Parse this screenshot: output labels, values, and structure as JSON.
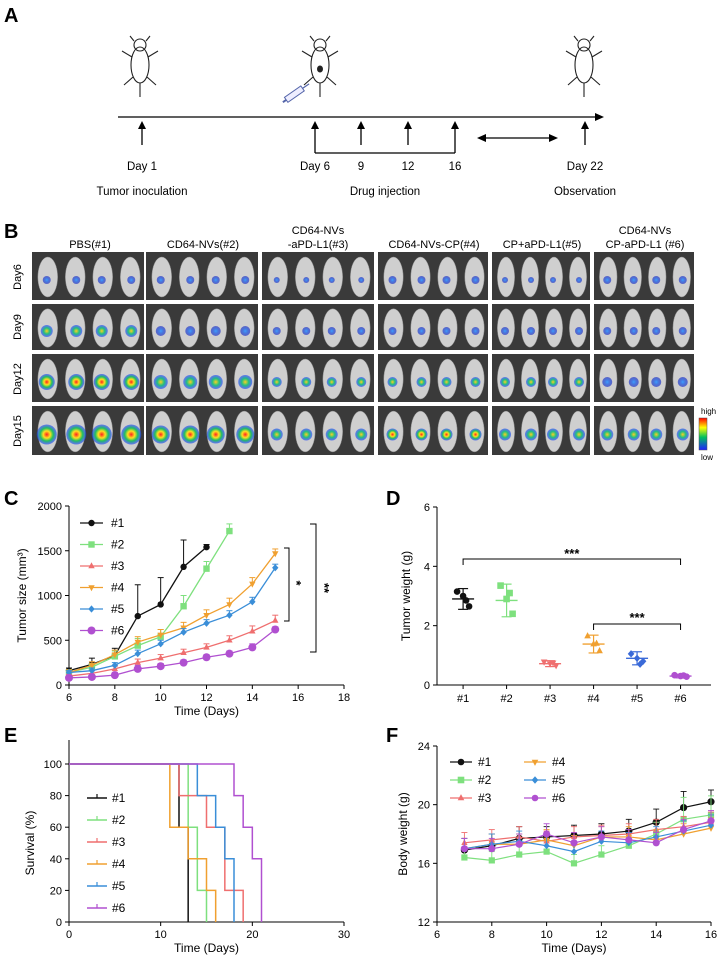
{
  "panel_a": {
    "label": "A",
    "days": [
      "Day 1",
      "Day 6",
      "9",
      "12",
      "16",
      "Day 22"
    ],
    "phases": [
      "Tumor inoculation",
      "Drug injection",
      "Observation"
    ]
  },
  "panel_b": {
    "label": "B",
    "groups": [
      {
        "lines": [
          "PBS(#1)"
        ]
      },
      {
        "lines": [
          "CD64-NVs(#2)"
        ]
      },
      {
        "lines": [
          "CD64-NVs",
          "-aPD-L1(#3)"
        ]
      },
      {
        "lines": [
          "CD64-NVs-CP(#4)"
        ]
      },
      {
        "lines": [
          "CP+aPD-L1(#5)"
        ]
      },
      {
        "lines": [
          "CD64-NVs",
          "CP-aPD-L1 (#6)"
        ]
      }
    ],
    "rows": [
      "Day6",
      "Day9",
      "Day12",
      "Day15"
    ],
    "scale_high": "high",
    "scale_low": "low"
  },
  "chart_data": [
    {
      "panel": "C",
      "type": "line",
      "xlabel": "Time (Days)",
      "ylabel": "Tumor size (mm³)",
      "xlim": [
        6,
        18
      ],
      "ylim": [
        0,
        2000
      ],
      "xticks": [
        6,
        8,
        10,
        12,
        14,
        16,
        18
      ],
      "yticks": [
        0,
        500,
        1000,
        1500,
        2000
      ],
      "series": [
        {
          "name": "#1",
          "color": "#111111",
          "marker": "circle",
          "x": [
            6,
            7,
            8,
            9,
            10,
            11,
            12
          ],
          "y": [
            160,
            230,
            330,
            770,
            900,
            1320,
            1540
          ],
          "err": [
            30,
            70,
            80,
            350,
            300,
            300,
            30
          ]
        },
        {
          "name": "#2",
          "color": "#7ee07e",
          "marker": "square",
          "x": [
            6,
            7,
            8,
            9,
            10,
            11,
            12,
            13
          ],
          "y": [
            140,
            200,
            320,
            440,
            540,
            880,
            1300,
            1720
          ],
          "err": [
            30,
            40,
            60,
            80,
            80,
            120,
            80,
            80
          ]
        },
        {
          "name": "#3",
          "color": "#ef6f6f",
          "marker": "triangle",
          "x": [
            6,
            7,
            8,
            9,
            10,
            11,
            12,
            13,
            14,
            15
          ],
          "y": [
            100,
            130,
            180,
            250,
            300,
            360,
            420,
            500,
            600,
            720
          ],
          "err": [
            20,
            30,
            30,
            40,
            40,
            40,
            40,
            50,
            60,
            60
          ]
        },
        {
          "name": "#4",
          "color": "#f0a030",
          "marker": "triangle-down",
          "x": [
            6,
            7,
            8,
            9,
            10,
            11,
            12,
            13,
            14,
            15
          ],
          "y": [
            140,
            220,
            340,
            480,
            560,
            640,
            780,
            900,
            1130,
            1470
          ],
          "err": [
            30,
            40,
            50,
            60,
            60,
            60,
            60,
            70,
            70,
            50
          ]
        },
        {
          "name": "#5",
          "color": "#3a8ed8",
          "marker": "diamond",
          "x": [
            6,
            7,
            8,
            9,
            10,
            11,
            12,
            13,
            14,
            15
          ],
          "y": [
            140,
            160,
            220,
            350,
            460,
            590,
            690,
            780,
            930,
            1310
          ],
          "err": [
            20,
            30,
            30,
            40,
            40,
            40,
            40,
            50,
            50,
            40
          ]
        },
        {
          "name": "#6",
          "color": "#b050d0",
          "marker": "circle",
          "x": [
            6,
            7,
            8,
            9,
            10,
            11,
            12,
            13,
            14,
            15
          ],
          "y": [
            80,
            90,
            110,
            180,
            210,
            250,
            310,
            350,
            420,
            620
          ],
          "err": [
            20,
            20,
            30,
            40,
            30,
            30,
            30,
            30,
            40,
            30
          ]
        }
      ],
      "annotations": [
        "*",
        "**"
      ]
    },
    {
      "panel": "D",
      "type": "scatter",
      "ylabel": "Tumor weight (g)",
      "ylim": [
        0,
        6
      ],
      "yticks": [
        0,
        2,
        4,
        6
      ],
      "categories": [
        "#1",
        "#2",
        "#3",
        "#4",
        "#5",
        "#6"
      ],
      "groups": [
        {
          "name": "#1",
          "color": "#111111",
          "mean": 2.9,
          "sd": 0.35,
          "points": [
            3.15,
            2.65,
            3.0,
            2.85
          ]
        },
        {
          "name": "#2",
          "color": "#7ee07e",
          "mean": 2.85,
          "sd": 0.55,
          "points": [
            3.35,
            2.4,
            2.9,
            3.1
          ]
        },
        {
          "name": "#3",
          "color": "#ef6f6f",
          "mean": 0.72,
          "sd": 0.1,
          "points": [
            0.78,
            0.66,
            0.72,
            0.75
          ]
        },
        {
          "name": "#4",
          "color": "#f0a030",
          "mean": 1.38,
          "sd": 0.3,
          "points": [
            1.65,
            1.15,
            1.38,
            1.4
          ]
        },
        {
          "name": "#5",
          "color": "#3a6ad8",
          "mean": 0.9,
          "sd": 0.22,
          "points": [
            1.05,
            0.8,
            0.9,
            0.7
          ]
        },
        {
          "name": "#6",
          "color": "#b050d0",
          "mean": 0.3,
          "sd": 0.06,
          "points": [
            0.33,
            0.28,
            0.3,
            0.32
          ]
        }
      ],
      "annotations": [
        "***",
        "***"
      ]
    },
    {
      "panel": "E",
      "type": "line",
      "xlabel": "Time (Days)",
      "ylabel": "Survival (%)",
      "xlim": [
        0,
        30
      ],
      "ylim": [
        0,
        100
      ],
      "xticks": [
        0,
        10,
        20,
        30
      ],
      "yticks": [
        0,
        20,
        40,
        60,
        80,
        100
      ],
      "series": [
        {
          "name": "#1",
          "color": "#111111",
          "x": [
            0,
            12,
            12,
            13,
            13
          ],
          "y": [
            100,
            100,
            60,
            60,
            0
          ]
        },
        {
          "name": "#2",
          "color": "#7ee07e",
          "x": [
            0,
            13,
            13,
            14,
            14,
            15,
            15
          ],
          "y": [
            100,
            100,
            60,
            60,
            20,
            20,
            0
          ]
        },
        {
          "name": "#3",
          "color": "#ef6f6f",
          "x": [
            0,
            12,
            12,
            15,
            15,
            17,
            17,
            19,
            19
          ],
          "y": [
            100,
            100,
            80,
            80,
            60,
            60,
            20,
            20,
            0
          ]
        },
        {
          "name": "#4",
          "color": "#f0a030",
          "x": [
            0,
            11,
            11,
            13,
            13,
            15,
            15,
            16,
            16
          ],
          "y": [
            100,
            100,
            60,
            60,
            40,
            40,
            20,
            20,
            0
          ]
        },
        {
          "name": "#5",
          "color": "#3a8ed8",
          "x": [
            0,
            14,
            14,
            16,
            16,
            17,
            17,
            18,
            18
          ],
          "y": [
            100,
            100,
            80,
            80,
            60,
            60,
            40,
            40,
            0
          ]
        },
        {
          "name": "#6",
          "color": "#b050d0",
          "x": [
            0,
            18,
            18,
            19,
            19,
            20,
            20,
            21,
            21
          ],
          "y": [
            100,
            100,
            80,
            80,
            60,
            60,
            40,
            40,
            0
          ]
        }
      ]
    },
    {
      "panel": "F",
      "type": "line",
      "xlabel": "Time (Days)",
      "ylabel": "Body weight (g)",
      "xlim": [
        6,
        16
      ],
      "ylim": [
        12,
        24
      ],
      "xticks": [
        6,
        8,
        10,
        12,
        14,
        16
      ],
      "yticks": [
        12,
        16,
        20,
        24
      ],
      "series": [
        {
          "name": "#1",
          "color": "#111111",
          "marker": "circle",
          "x": [
            7,
            8,
            9,
            10,
            11,
            12,
            13,
            14,
            15,
            16
          ],
          "y": [
            16.9,
            17.2,
            17.7,
            17.8,
            17.9,
            18.0,
            18.2,
            18.8,
            19.8,
            20.2
          ],
          "err": [
            0.8,
            0.8,
            0.8,
            0.7,
            0.7,
            0.7,
            0.8,
            0.9,
            1.1,
            0.8
          ]
        },
        {
          "name": "#2",
          "color": "#7ee07e",
          "marker": "square",
          "x": [
            7,
            8,
            9,
            10,
            11,
            12,
            13,
            14,
            15,
            16
          ],
          "y": [
            16.4,
            16.2,
            16.6,
            16.8,
            16.0,
            16.6,
            17.2,
            18.0,
            19.0,
            19.3
          ],
          "err": [
            0.6,
            0.6,
            0.6,
            0.6,
            0.6,
            0.6,
            0.6,
            0.8,
            1.5,
            1.3
          ]
        },
        {
          "name": "#3",
          "color": "#ef6f6f",
          "marker": "triangle",
          "x": [
            7,
            8,
            9,
            10,
            11,
            12,
            13,
            14,
            15,
            16
          ],
          "y": [
            17.4,
            17.6,
            17.8,
            17.5,
            17.8,
            17.9,
            18.0,
            18.3,
            18.5,
            18.8
          ],
          "err": [
            0.7,
            0.7,
            0.7,
            0.7,
            0.7,
            0.7,
            0.7,
            0.7,
            0.7,
            0.7
          ]
        },
        {
          "name": "#4",
          "color": "#f0a030",
          "marker": "triangle-down",
          "x": [
            7,
            8,
            9,
            10,
            11,
            12,
            13,
            14,
            15,
            16
          ],
          "y": [
            17.0,
            17.3,
            17.3,
            17.6,
            17.2,
            17.8,
            17.8,
            17.6,
            18.0,
            18.4
          ],
          "err": [
            0.7,
            0.7,
            0.7,
            0.7,
            0.7,
            0.7,
            0.7,
            0.7,
            0.7,
            0.7
          ]
        },
        {
          "name": "#5",
          "color": "#3a8ed8",
          "marker": "diamond",
          "x": [
            7,
            8,
            9,
            10,
            11,
            12,
            13,
            14,
            15,
            16
          ],
          "y": [
            17.0,
            17.3,
            17.5,
            17.2,
            16.8,
            17.5,
            17.4,
            17.8,
            18.2,
            18.6
          ],
          "err": [
            0.7,
            0.7,
            0.7,
            0.7,
            0.7,
            0.7,
            0.7,
            0.7,
            0.7,
            0.7
          ]
        },
        {
          "name": "#6",
          "color": "#b050d0",
          "marker": "circle",
          "x": [
            7,
            8,
            9,
            10,
            11,
            12,
            13,
            14,
            15,
            16
          ],
          "y": [
            17.0,
            17.0,
            17.3,
            18.0,
            17.4,
            17.8,
            17.6,
            17.4,
            18.3,
            18.9
          ],
          "err": [
            0.7,
            0.7,
            0.7,
            0.7,
            0.7,
            0.7,
            0.7,
            0.7,
            0.7,
            0.7
          ]
        }
      ]
    }
  ]
}
